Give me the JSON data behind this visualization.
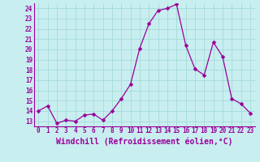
{
  "x": [
    0,
    1,
    2,
    3,
    4,
    5,
    6,
    7,
    8,
    9,
    10,
    11,
    12,
    13,
    14,
    15,
    16,
    17,
    18,
    19,
    20,
    21,
    22,
    23
  ],
  "y": [
    14,
    14.5,
    12.8,
    13.1,
    13.0,
    13.6,
    13.7,
    13.1,
    14.0,
    15.2,
    16.6,
    20.1,
    22.5,
    23.8,
    24.0,
    24.4,
    20.4,
    18.1,
    17.5,
    20.7,
    19.3,
    15.2,
    14.7,
    13.8
  ],
  "line_color": "#990099",
  "marker_color": "#990099",
  "bg_color": "#c8eef0",
  "grid_color": "#aadddd",
  "xlabel": "Windchill (Refroidissement éolien,°C)",
  "xlabel_color": "#990099",
  "ylim_min": 12.5,
  "ylim_max": 24.5,
  "yticks": [
    13,
    14,
    15,
    16,
    17,
    18,
    19,
    20,
    21,
    22,
    23,
    24
  ],
  "xticks": [
    0,
    1,
    2,
    3,
    4,
    5,
    6,
    7,
    8,
    9,
    10,
    11,
    12,
    13,
    14,
    15,
    16,
    17,
    18,
    19,
    20,
    21,
    22,
    23
  ],
  "tick_color": "#990099",
  "tick_fontsize": 5.5,
  "xlabel_fontsize": 7.0,
  "marker_size": 2.5,
  "line_width": 0.9
}
